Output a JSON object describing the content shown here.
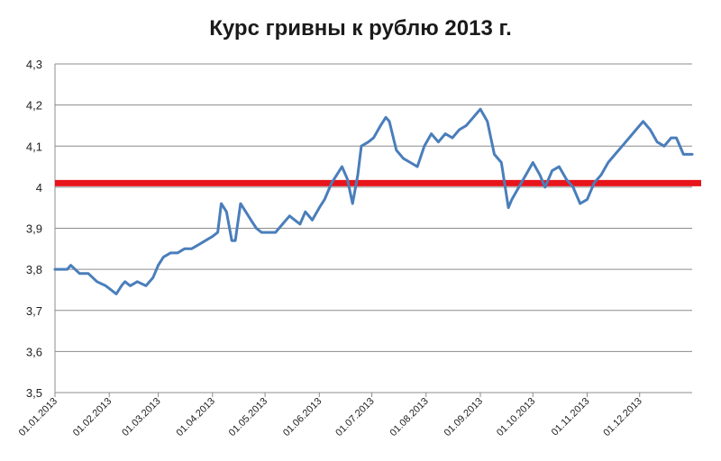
{
  "chart_data": {
    "type": "line",
    "title": "Курс гривны к рублю 2013 г.",
    "xlabel": "",
    "ylabel": "",
    "ylim": [
      3.5,
      4.3
    ],
    "y_ticks": [
      "3,5",
      "3,6",
      "3,7",
      "3,8",
      "3,9",
      "4",
      "4,1",
      "4,2",
      "4,3"
    ],
    "y_tick_values": [
      3.5,
      3.6,
      3.7,
      3.8,
      3.9,
      4.0,
      4.1,
      4.2,
      4.3
    ],
    "x_ticks": [
      "01.01.2013",
      "01.02.2013",
      "01.03.2013",
      "01.04.2013",
      "01.05.2013",
      "01.06.2013",
      "01.07.2013",
      "01.08.2013",
      "01.09.2013",
      "01.10.2013",
      "01.11.2013",
      "01.12.2013"
    ],
    "x_range": [
      "2013-01-01",
      "2013-12-31"
    ],
    "grid": "horizontal",
    "legend": "none",
    "line_color": "#4a7ebb",
    "reference_line_color": "#e8141b",
    "reference_line_value": 4.01,
    "series": [
      {
        "x": [
          "2013-01-01",
          "2013-01-08",
          "2013-01-10",
          "2013-01-15",
          "2013-01-20",
          "2013-01-25",
          "2013-01-30",
          "2013-02-02",
          "2013-02-05",
          "2013-02-08",
          "2013-02-10",
          "2013-02-13",
          "2013-02-17",
          "2013-02-22",
          "2013-02-26",
          "2013-03-01",
          "2013-03-04",
          "2013-03-08",
          "2013-03-12",
          "2013-03-16",
          "2013-03-20",
          "2013-03-24",
          "2013-03-28",
          "2013-04-01",
          "2013-04-04",
          "2013-04-06",
          "2013-04-09",
          "2013-04-12",
          "2013-04-14",
          "2013-04-17",
          "2013-04-20",
          "2013-04-23",
          "2013-04-26",
          "2013-04-29",
          "2013-05-03",
          "2013-05-07",
          "2013-05-11",
          "2013-05-15",
          "2013-05-18",
          "2013-05-21",
          "2013-05-24",
          "2013-05-28",
          "2013-06-01",
          "2013-06-04",
          "2013-06-08",
          "2013-06-11",
          "2013-06-14",
          "2013-06-17",
          "2013-06-20",
          "2013-06-23",
          "2013-06-25",
          "2013-06-29",
          "2013-07-02",
          "2013-07-06",
          "2013-07-09",
          "2013-07-11",
          "2013-07-15",
          "2013-07-19",
          "2013-07-23",
          "2013-07-27",
          "2013-07-31",
          "2013-08-04",
          "2013-08-08",
          "2013-08-12",
          "2013-08-16",
          "2013-08-20",
          "2013-08-24",
          "2013-08-28",
          "2013-09-01",
          "2013-09-05",
          "2013-09-09",
          "2013-09-13",
          "2013-09-17",
          "2013-09-19",
          "2013-09-23",
          "2013-09-27",
          "2013-10-01",
          "2013-10-05",
          "2013-10-08",
          "2013-10-12",
          "2013-10-16",
          "2013-10-20",
          "2013-10-24",
          "2013-10-28",
          "2013-11-01",
          "2013-11-05",
          "2013-11-09",
          "2013-11-13",
          "2013-11-17",
          "2013-11-21",
          "2013-11-25",
          "2013-11-29",
          "2013-12-03",
          "2013-12-07",
          "2013-12-11",
          "2013-12-15",
          "2013-12-19",
          "2013-12-22",
          "2013-12-26",
          "2013-12-31"
        ],
        "values": [
          3.8,
          3.8,
          3.81,
          3.79,
          3.79,
          3.77,
          3.76,
          3.75,
          3.74,
          3.76,
          3.77,
          3.76,
          3.77,
          3.76,
          3.78,
          3.81,
          3.83,
          3.84,
          3.84,
          3.85,
          3.85,
          3.86,
          3.87,
          3.88,
          3.89,
          3.96,
          3.94,
          3.87,
          3.87,
          3.96,
          3.94,
          3.92,
          3.9,
          3.89,
          3.89,
          3.89,
          3.91,
          3.93,
          3.92,
          3.91,
          3.94,
          3.92,
          3.95,
          3.97,
          4.01,
          4.03,
          4.05,
          4.02,
          3.96,
          4.03,
          4.1,
          4.11,
          4.12,
          4.15,
          4.17,
          4.16,
          4.09,
          4.07,
          4.06,
          4.05,
          4.1,
          4.13,
          4.11,
          4.13,
          4.12,
          4.14,
          4.15,
          4.17,
          4.19,
          4.16,
          4.08,
          4.06,
          3.95,
          3.97,
          4.0,
          4.03,
          4.06,
          4.03,
          4.0,
          4.04,
          4.05,
          4.02,
          4.0,
          3.96,
          3.97,
          4.01,
          4.03,
          4.06,
          4.08,
          4.1,
          4.12,
          4.14,
          4.16,
          4.14,
          4.11,
          4.1,
          4.12,
          4.12,
          4.08,
          4.08
        ]
      }
    ]
  }
}
